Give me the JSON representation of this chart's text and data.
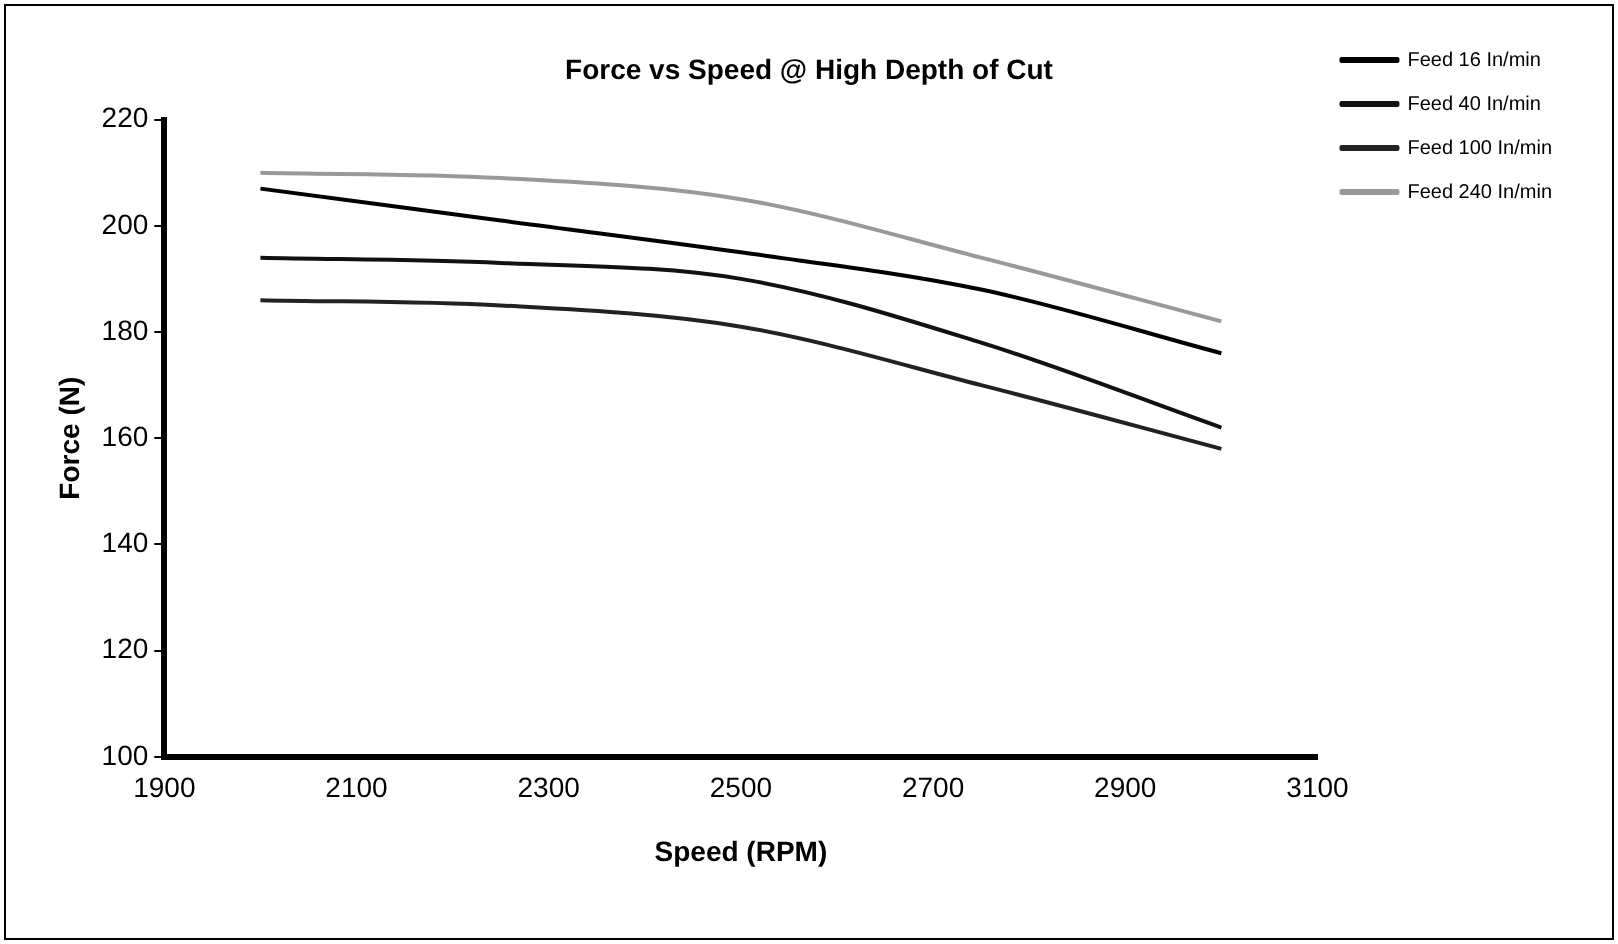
{
  "chart_data": {
    "type": "line",
    "title": "Force vs Speed @ High Depth of Cut",
    "xlabel": "Speed (RPM)",
    "ylabel": "Force (N)",
    "x": [
      2000,
      2250,
      2500,
      2750,
      3000
    ],
    "series": [
      {
        "name": "Feed 16 In/min",
        "color": "#000000",
        "values": [
          207,
          201,
          195,
          188,
          176
        ]
      },
      {
        "name": "Feed 40 In/min",
        "color": "#111111",
        "values": [
          194,
          193,
          190,
          178,
          162
        ]
      },
      {
        "name": "Feed 100 In/min",
        "color": "#222222",
        "values": [
          186,
          185,
          181,
          170,
          158
        ]
      },
      {
        "name": "Feed 240 In/min",
        "color": "#999999",
        "values": [
          210,
          209,
          205,
          194,
          182
        ]
      }
    ],
    "xlim": [
      1900,
      3100
    ],
    "xticks": [
      1900,
      2100,
      2300,
      2500,
      2700,
      2900,
      3100
    ],
    "ylim": [
      100,
      220
    ],
    "yticks": [
      100,
      120,
      140,
      160,
      180,
      200,
      220
    ],
    "grid": false,
    "legend": "top right",
    "marker": "none",
    "line_style": "solid"
  }
}
